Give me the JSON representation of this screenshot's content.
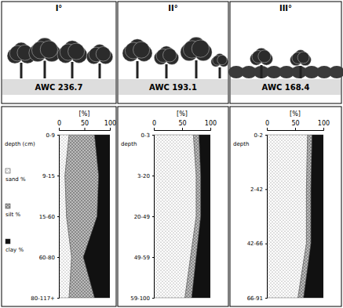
{
  "chart_data": [
    {
      "type": "area",
      "title": "I°",
      "annotation": "AWC 236.7",
      "x_label": "[%]",
      "y_label": "depth (cm)",
      "orientation": "horizontal",
      "stacked": true,
      "legend": "left",
      "categories": [
        "0-9",
        "9-15",
        "15-60",
        "60-80",
        "80-117+"
      ],
      "xlim": [
        0,
        100
      ],
      "xticks": [
        0,
        50,
        100
      ],
      "series": [
        {
          "name": "sand %",
          "color": "#ffffff",
          "values": [
            20,
            12,
            15,
            25,
            20
          ]
        },
        {
          "name": "silt %",
          "color": "#bbbbbb",
          "values": [
            50,
            66,
            60,
            23,
            50
          ]
        },
        {
          "name": "clay %",
          "color": "#111111",
          "values": [
            30,
            22,
            25,
            52,
            30
          ]
        }
      ]
    },
    {
      "type": "area",
      "title": "II°",
      "annotation": "AWC 193.1",
      "x_label": "[%]",
      "y_label": "depth",
      "orientation": "horizontal",
      "stacked": true,
      "categories": [
        "0-3",
        "3-20",
        "20-49",
        "49-59",
        "59-100"
      ],
      "xlim": [
        0,
        100
      ],
      "xticks": [
        0,
        50,
        100
      ],
      "series": [
        {
          "name": "sand %",
          "color": "#ffffff",
          "values": [
            70,
            75,
            75,
            65,
            55
          ]
        },
        {
          "name": "silt %",
          "color": "#bbbbbb",
          "values": [
            10,
            8,
            8,
            10,
            12
          ]
        },
        {
          "name": "clay %",
          "color": "#111111",
          "values": [
            20,
            17,
            17,
            25,
            33
          ]
        }
      ]
    },
    {
      "type": "area",
      "title": "III°",
      "annotation": "AWC 168.4",
      "x_label": "[%]",
      "y_label": "depth",
      "orientation": "horizontal",
      "stacked": true,
      "categories": [
        "0-2",
        "2-42",
        "42-66",
        "66-91"
      ],
      "xlim": [
        0,
        100
      ],
      "xticks": [
        0,
        50,
        100
      ],
      "series": [
        {
          "name": "sand %",
          "color": "#ffffff",
          "values": [
            72,
            70,
            70,
            55
          ]
        },
        {
          "name": "silt %",
          "color": "#bbbbbb",
          "values": [
            8,
            8,
            8,
            10
          ]
        },
        {
          "name": "clay %",
          "color": "#111111",
          "values": [
            20,
            22,
            22,
            35
          ]
        }
      ]
    }
  ]
}
